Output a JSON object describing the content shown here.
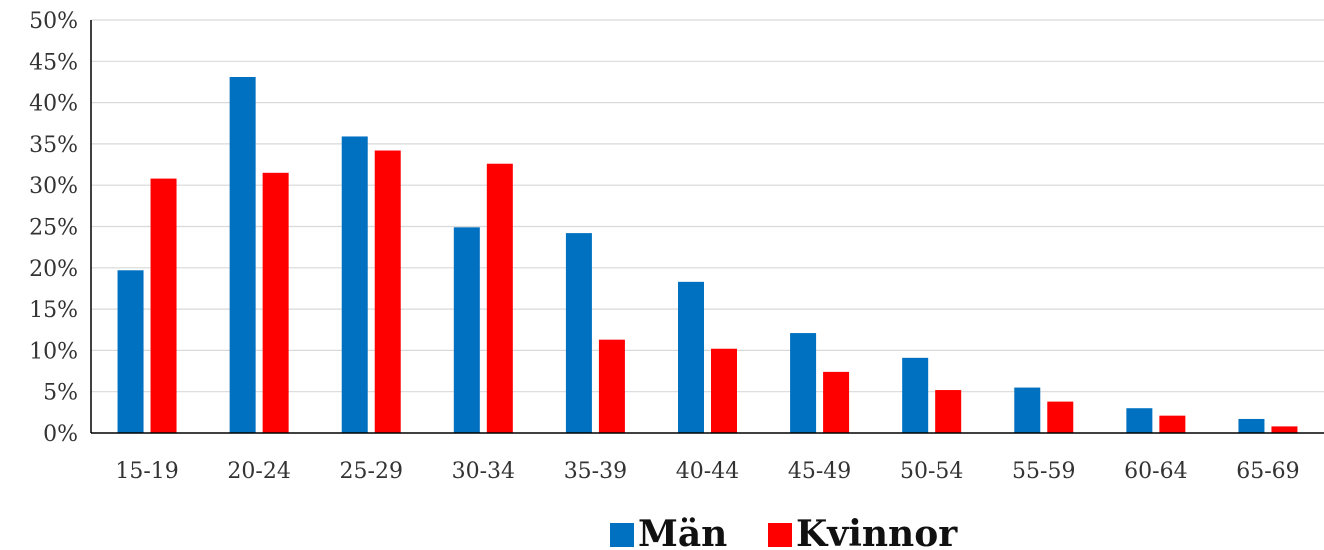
{
  "chart_data": {
    "type": "bar",
    "categories": [
      "15-19",
      "20-24",
      "25-29",
      "30-34",
      "35-39",
      "40-44",
      "45-49",
      "50-54",
      "55-59",
      "60-64",
      "65-69"
    ],
    "series": [
      {
        "name": "Män",
        "color": "#0070C0",
        "values": [
          19.7,
          43.1,
          35.9,
          24.9,
          24.2,
          18.3,
          12.1,
          9.1,
          5.5,
          3.0,
          1.7
        ]
      },
      {
        "name": "Kvinnor",
        "color": "#FF0000",
        "values": [
          30.8,
          31.5,
          34.2,
          32.6,
          11.3,
          10.2,
          7.4,
          5.2,
          3.8,
          2.1,
          0.8
        ]
      }
    ],
    "yticks": [
      "0%",
      "5%",
      "10%",
      "15%",
      "20%",
      "25%",
      "30%",
      "35%",
      "40%",
      "45%",
      "50%"
    ],
    "ylim": [
      0,
      50
    ],
    "yunit": "%",
    "grid": true,
    "legend_position": "bottom",
    "title": "",
    "xlabel": "",
    "ylabel": ""
  }
}
